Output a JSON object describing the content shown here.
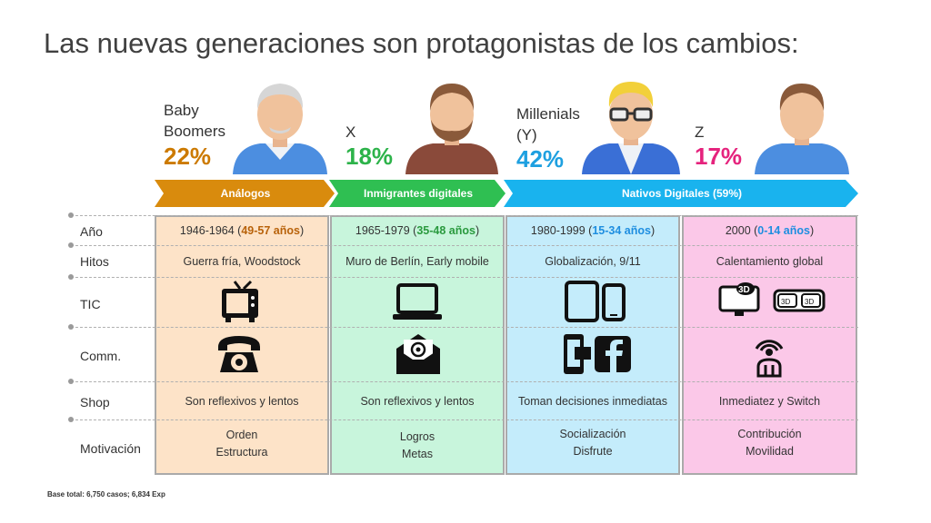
{
  "title": "Las nuevas generaciones son protagonistas de los cambios:",
  "generations": [
    {
      "name": "Baby\nBoomers",
      "percent": "22%",
      "color": "#cc7a00"
    },
    {
      "name": "X",
      "percent": "18%",
      "color": "#2db34a"
    },
    {
      "name": "Millenials\n(Y)",
      "percent": "42%",
      "color": "#1ea0e0"
    },
    {
      "name": "Z",
      "percent": "17%",
      "color": "#e5237d"
    }
  ],
  "arrows": [
    {
      "label": "Análogos",
      "color": "#d98b0d"
    },
    {
      "label": "Inmigrantes digitales",
      "color": "#2fbf52"
    },
    {
      "label": "Nativos Digitales (59%)",
      "color": "#19b3ee"
    }
  ],
  "row_labels": [
    "Año",
    "Hitos",
    "TIC",
    "Comm.",
    "Shop",
    "Motivación"
  ],
  "columns": [
    {
      "year_main": "1946-1964 (",
      "year_age": "49-57 años",
      "year_close": ")",
      "age_color": "#b8620a",
      "hitos": "Guerra fría, Woodstock",
      "shop": "Son reflexivos y lentos",
      "motiv1": "Orden",
      "motiv2": "Estructura",
      "bg": "#fde3c8"
    },
    {
      "year_main": "1965-1979 (",
      "year_age": "35-48 años",
      "year_close": ")",
      "age_color": "#2a9a3e",
      "hitos": "Muro de Berlín, Early mobile",
      "shop": "Son reflexivos y lentos",
      "motiv1": "Logros",
      "motiv2": "Metas",
      "bg": "#c8f5dc"
    },
    {
      "year_main": "1980-1999 (",
      "year_age": "15-34 años",
      "year_close": ")",
      "age_color": "#1e8ee0",
      "hitos": "Globalización, 9/11",
      "shop": "Toman decisiones inmediatas",
      "motiv1": "Socialización",
      "motiv2": "Disfrute",
      "bg": "#c4ecfb"
    },
    {
      "year_main": "2000 (",
      "year_age": "0-14 años",
      "year_close": ")",
      "age_color": "#1e8ee0",
      "hitos": "Calentamiento global",
      "shop": "Inmediatez y Switch",
      "motiv1": "Contribución",
      "motiv2": "Movilidad",
      "bg": "#fbc8e8"
    }
  ],
  "icons": {
    "tic": [
      "tv-icon",
      "laptop-icon",
      "tablet-phone-icon",
      "3d-tv-glasses-icon"
    ],
    "comm": [
      "telephone-icon",
      "email-icon",
      "mobile-facebook-icon",
      "signal-person-icon"
    ],
    "labels": {
      "three_d": "3D"
    }
  },
  "footnote": "Base total: 6,750 casos;  6,834 Exp"
}
